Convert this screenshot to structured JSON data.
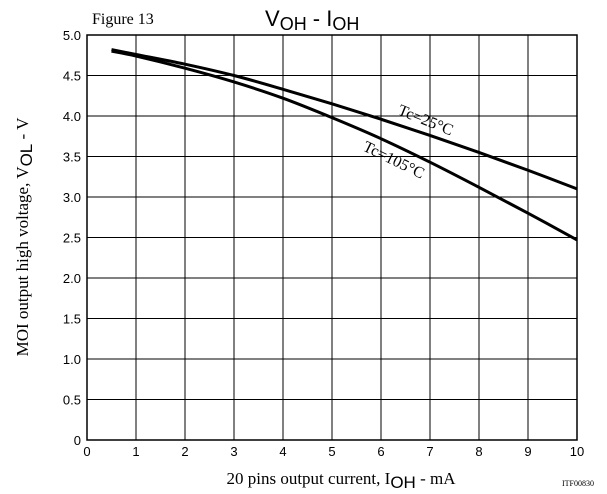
{
  "figure_label": "Figure 13",
  "title": {
    "main": "V",
    "sub1": "OH",
    "mid": " - I",
    "sub2": "OH"
  },
  "ylabel": {
    "pre": "MOI output high voltage, V",
    "sub": "OL",
    "post": " - V"
  },
  "xlabel": {
    "pre": "20 pins output current, I",
    "sub": "OH",
    "post": " - mA"
  },
  "doc_code": "ITF00830",
  "chart_data": {
    "type": "line",
    "title": "VOH - IOH",
    "xlabel": "20 pins output current, IOH - mA",
    "ylabel": "MOI output high voltage, VOL - V",
    "xlim": [
      0,
      10
    ],
    "ylim": [
      0,
      5.0
    ],
    "grid": true,
    "x_ticks": [
      "0",
      "1",
      "2",
      "3",
      "4",
      "5",
      "6",
      "7",
      "8",
      "9",
      "10"
    ],
    "y_ticks": [
      "0",
      "0.5",
      "1.0",
      "1.5",
      "2.0",
      "2.5",
      "3.0",
      "3.5",
      "4.0",
      "4.5",
      "5.0"
    ],
    "series": [
      {
        "name": "Tc=25°C",
        "x": [
          0.5,
          1,
          2,
          3,
          4,
          5,
          6,
          7,
          8,
          9,
          10
        ],
        "y": [
          4.82,
          4.76,
          4.64,
          4.5,
          4.33,
          4.15,
          3.96,
          3.76,
          3.55,
          3.33,
          3.1
        ]
      },
      {
        "name": "Tc=105°C",
        "x": [
          0.5,
          1,
          2,
          3,
          4,
          5,
          6,
          7,
          8,
          9,
          10
        ],
        "y": [
          4.8,
          4.74,
          4.59,
          4.42,
          4.22,
          3.98,
          3.72,
          3.43,
          3.12,
          2.8,
          2.47
        ]
      }
    ]
  }
}
